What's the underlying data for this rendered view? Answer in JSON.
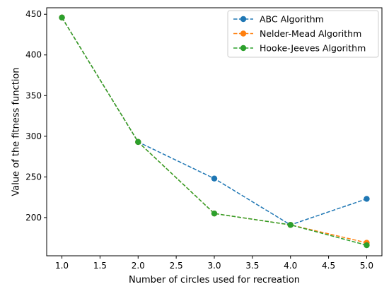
{
  "chart_data": {
    "type": "line",
    "xlabel": "Number of circles used for recreation",
    "ylabel": "Value of the fitness function",
    "xlim": [
      0.8,
      5.2
    ],
    "ylim": [
      153,
      458
    ],
    "xticks": [
      1.0,
      1.5,
      2.0,
      2.5,
      3.0,
      3.5,
      4.0,
      4.5,
      5.0
    ],
    "xtick_labels": [
      "1.0",
      "1.5",
      "2.0",
      "2.5",
      "3.0",
      "3.5",
      "4.0",
      "4.5",
      "5.0"
    ],
    "yticks": [
      200,
      250,
      300,
      350,
      400,
      450
    ],
    "ytick_labels": [
      "200",
      "250",
      "300",
      "350",
      "400",
      "450"
    ],
    "grid": false,
    "legend_position": "top-right",
    "line_style": "dashed",
    "marker": "circle",
    "x": [
      1.0,
      2.0,
      3.0,
      4.0,
      5.0
    ],
    "series": [
      {
        "name": "ABC Algorithm",
        "color": "#1f77b4",
        "values": [
          446,
          293,
          248,
          191,
          223
        ]
      },
      {
        "name": "Nelder-Mead Algorithm",
        "color": "#ff7f0e",
        "values": [
          446,
          293,
          205,
          191,
          169
        ]
      },
      {
        "name": "Hooke-Jeeves Algorithm",
        "color": "#2ca02c",
        "values": [
          446,
          293,
          205,
          191,
          166
        ]
      }
    ]
  }
}
